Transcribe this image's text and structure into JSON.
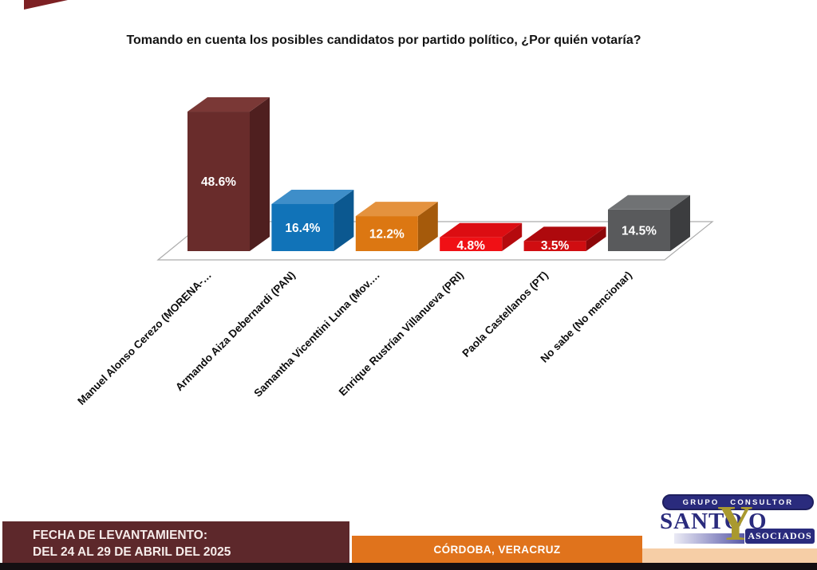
{
  "slide": {
    "title": "Tomando en cuenta los posibles candidatos por partido político, ¿Por quién votaría?"
  },
  "chart_data": {
    "type": "bar",
    "style": "3d-column",
    "title": "Tomando en cuenta los posibles candidatos por partido político, ¿Por quién votaría?",
    "xlabel": "",
    "ylabel": "",
    "unit": "%",
    "ylim": [
      0,
      50
    ],
    "grid": false,
    "legend": false,
    "categories": [
      "Manuel Alonso Cerezo  (MORENA-…",
      "Armando Aiza Debernardi (PAN)",
      "Samantha Vicenttini Luna (Mov.…",
      "Enrique Rustrían Villanueva (PRI)",
      "Paola Castellanos (PT)",
      "No sabe (No mencionar)"
    ],
    "values": [
      48.6,
      16.4,
      12.2,
      4.8,
      3.5,
      14.5
    ],
    "bars": [
      {
        "category": "Manuel Alonso Cerezo  (MORENA-…",
        "value": 48.6,
        "label": "48.6%",
        "front": "#692C2B",
        "top": "#7A3836",
        "side": "#4F1F1F"
      },
      {
        "category": "Armando Aiza Debernardi (PAN)",
        "value": 16.4,
        "label": "16.4%",
        "front": "#1173B8",
        "top": "#3E8EC9",
        "side": "#0B5890"
      },
      {
        "category": "Samantha Vicenttini Luna (Mov.…",
        "value": 12.2,
        "label": "12.2%",
        "front": "#DC7712",
        "top": "#E4923E",
        "side": "#A55A0B"
      },
      {
        "category": "Enrique Rustrían Villanueva (PRI)",
        "value": 4.8,
        "label": "4.8%",
        "front": "#F01015",
        "top": "#DC0D12",
        "side": "#B50A0E"
      },
      {
        "category": "Paola Castellanos (PT)",
        "value": 3.5,
        "label": "3.5%",
        "front": "#D00D11",
        "top": "#AE090D",
        "side": "#8C070A"
      },
      {
        "category": "No sabe (No mencionar)",
        "value": 14.5,
        "label": "14.5%",
        "front": "#595A5C",
        "top": "#707274",
        "side": "#3C3D3F"
      }
    ]
  },
  "footer": {
    "fieldwork_line1": "FECHA DE LEVANTAMIENTO:",
    "fieldwork_line2": "DEL 24 AL 29 DE ABRIL DEL 2025",
    "location": "CÓRDOBA, VERACRUZ",
    "colors": {
      "fieldwork_bg": "#5D282B",
      "location_bg": "#E0731C",
      "peach_bar": "#F6CEA6",
      "bottom_bar": "#140F12",
      "corner_accent": "#7D2023"
    }
  },
  "logo": {
    "tagline": "GRUPO CONSULTOR",
    "name_left": "SANTO",
    "name_accent": "Y",
    "name_right": "O",
    "subtitle": "ASOCIADOS",
    "colors": {
      "navy": "#2A2B7D",
      "gold": "#A9992F"
    }
  }
}
